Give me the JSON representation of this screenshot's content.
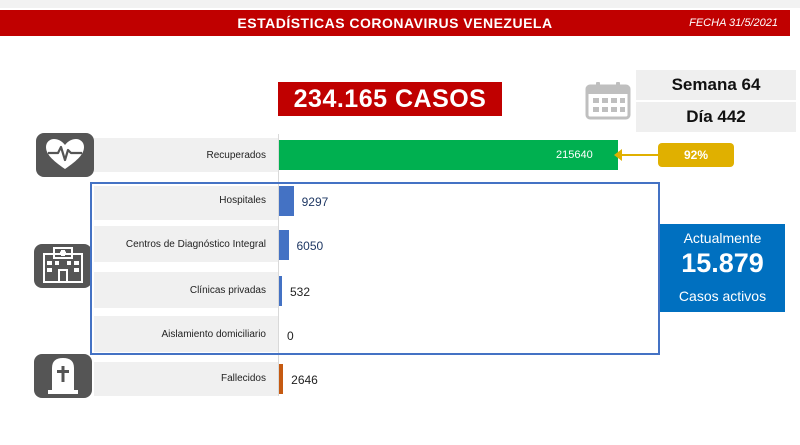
{
  "header": {
    "title": "ESTADÍSTICAS CORONAVIRUS VENEZUELA",
    "date": "FECHA 31/5/2021"
  },
  "summary": {
    "total_cases": "234.165 CASOS",
    "week": "Semana 64",
    "day": "Día 442",
    "recovered_pct": "92%",
    "active_title": "Actualmente",
    "active_number": "15.879",
    "active_sub": "Casos activos"
  },
  "icons": {
    "recovered": "heart-pulse-icon",
    "hospitals": "hospital-building-icon",
    "deaths": "tombstone-icon",
    "calendar": "calendar-icon"
  },
  "colors": {
    "header": "#c00000",
    "recovered_bar": "#00b050",
    "hospital_bar": "#4472c4",
    "death_bar": "#c55a11",
    "badge": "#e0b000",
    "active_box": "#0070c0"
  },
  "chart_data": {
    "type": "bar",
    "orientation": "horizontal",
    "title": "",
    "xlabel": "",
    "ylabel": "",
    "categories": [
      "Recuperados",
      "Hospitales",
      "Centros de Diagnóstico Integral",
      "Clínicas privadas",
      "Aislamiento domiciliario",
      "Fallecidos"
    ],
    "values": [
      215640,
      9297,
      6050,
      532,
      0,
      2646
    ],
    "value_labels": [
      "215640",
      "9297",
      "6050",
      "532",
      "0",
      "2646"
    ],
    "grid": false,
    "legend": "none"
  }
}
